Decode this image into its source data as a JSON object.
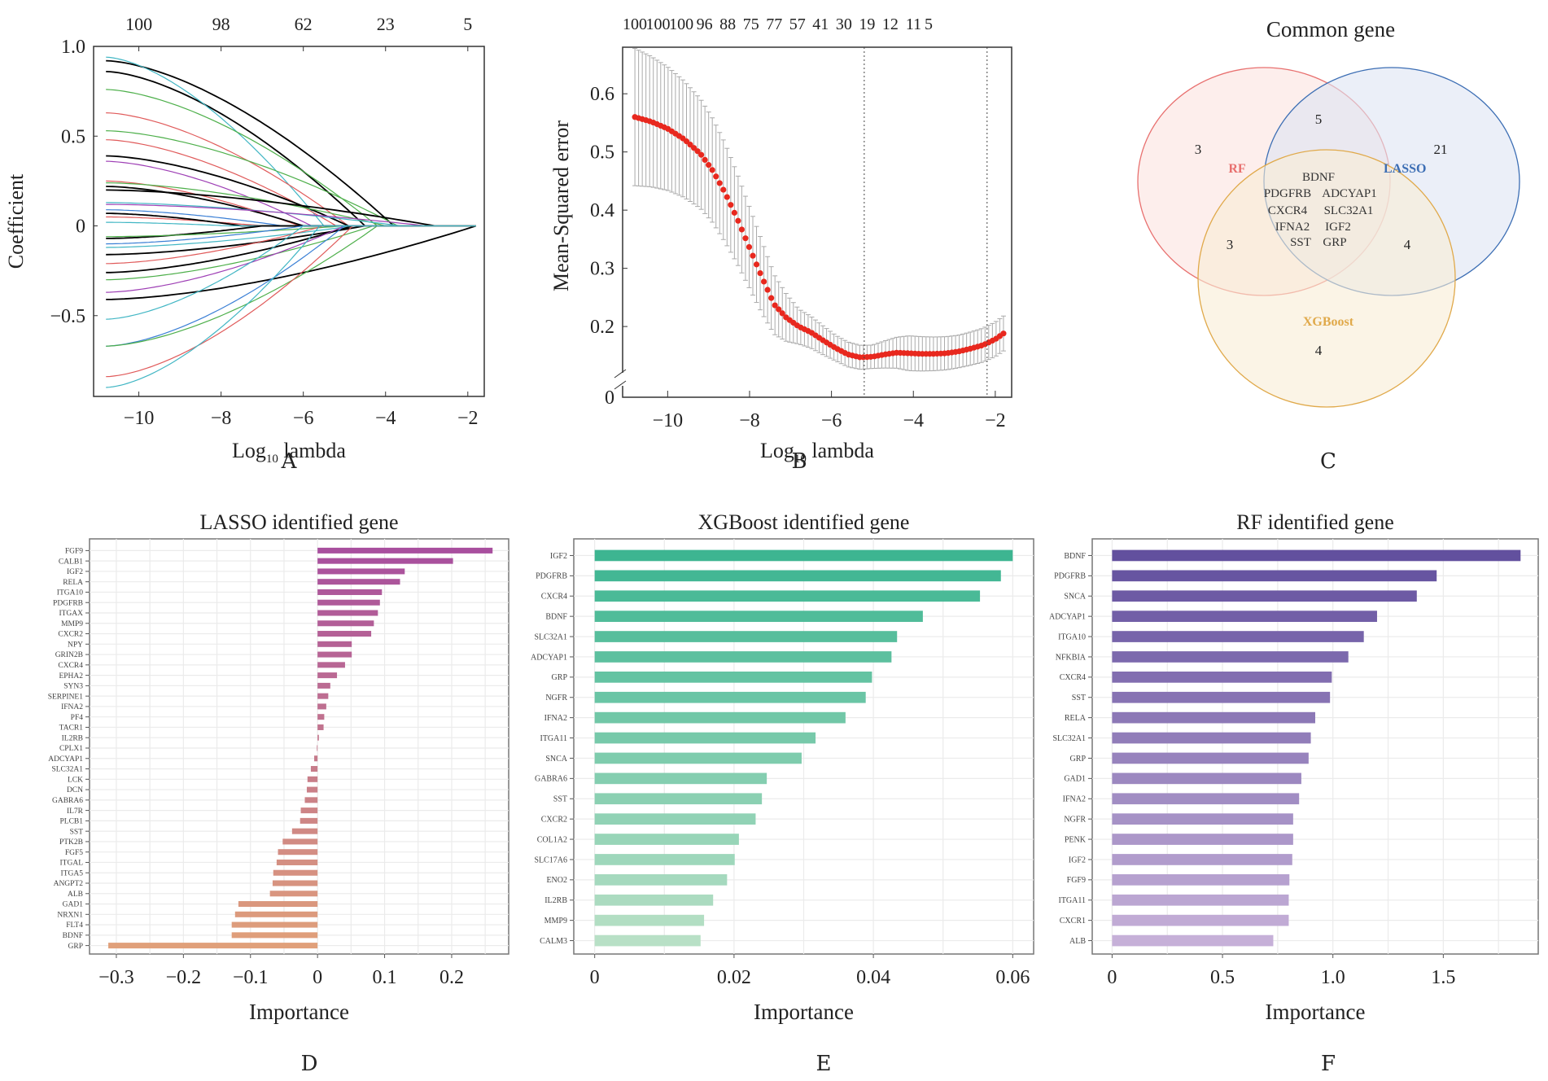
{
  "panels": {
    "A": "A",
    "B": "B",
    "C": "C",
    "D": "D",
    "E": "E",
    "F": "F"
  },
  "chart_data": [
    {
      "id": "A",
      "type": "line",
      "title": "",
      "xlabel": "Log10 lambda",
      "ylabel": "Coefficient",
      "xlim": [
        -11.1,
        -1.6
      ],
      "ylim": [
        -0.95,
        1.0
      ],
      "xticks": [
        -10,
        -8,
        -6,
        -4,
        -2
      ],
      "xtick_labels": [
        "−10",
        "−8",
        "−6",
        "−4",
        "−2"
      ],
      "yticks": [
        1.0,
        0.5,
        0,
        -0.5
      ],
      "ytick_labels": [
        "1.0",
        "0.5",
        "0",
        "−0.5"
      ],
      "top_ticks": [
        -10,
        -8,
        -6,
        -4,
        -2
      ],
      "top_tick_labels": [
        "100",
        "98",
        "62",
        "23",
        "5"
      ],
      "series_note": "LASSO coefficient paths (~100 genes), all converging to 0 near log10 lambda = -1.8",
      "series": [
        {
          "color": "#000000",
          "start": 0.92,
          "zero_at": -3.8
        },
        {
          "color": "#000000",
          "start": 0.86,
          "zero_at": -4.5
        },
        {
          "color": "#41b6c4",
          "start": 0.94,
          "zero_at": -5.5
        },
        {
          "color": "#4daf4a",
          "start": 0.76,
          "zero_at": -4.2
        },
        {
          "color": "#e05a5a",
          "start": 0.63,
          "zero_at": -4.9
        },
        {
          "color": "#4daf4a",
          "start": 0.53,
          "zero_at": -3.7
        },
        {
          "color": "#e05a5a",
          "start": 0.48,
          "zero_at": -5.2
        },
        {
          "color": "#000000",
          "start": 0.39,
          "zero_at": -4.9
        },
        {
          "color": "#9e3fb5",
          "start": 0.36,
          "zero_at": -5.8
        },
        {
          "color": "#e05a5a",
          "start": 0.25,
          "zero_at": -6.1
        },
        {
          "color": "#000000",
          "start": 0.22,
          "zero_at": -6.0
        },
        {
          "color": "#4daf4a",
          "start": 0.24,
          "zero_at": -4.0
        },
        {
          "color": "#000000",
          "start": 0.2,
          "zero_at": -2.8
        },
        {
          "color": "#41b6c4",
          "start": 0.13,
          "zero_at": -3.6
        },
        {
          "color": "#9e3fb5",
          "start": 0.12,
          "zero_at": -3.0
        },
        {
          "color": "#3a7fd5",
          "start": 0.09,
          "zero_at": -6.5
        },
        {
          "color": "#e05a5a",
          "start": 0.05,
          "zero_at": -7.0
        },
        {
          "color": "#000000",
          "start": 0.07,
          "zero_at": -7.5
        },
        {
          "color": "#41b6c4",
          "start": 0.02,
          "zero_at": -7.8
        },
        {
          "color": "#000000",
          "start": -0.07,
          "zero_at": -7.0
        },
        {
          "color": "#4daf4a",
          "start": -0.06,
          "zero_at": -5.0
        },
        {
          "color": "#3a7fd5",
          "start": -0.1,
          "zero_at": -6.0
        },
        {
          "color": "#41b6c4",
          "start": -0.12,
          "zero_at": -4.8
        },
        {
          "color": "#000000",
          "start": -0.16,
          "zero_at": -4.5
        },
        {
          "color": "#e05a5a",
          "start": -0.21,
          "zero_at": -5.5
        },
        {
          "color": "#000000",
          "start": -0.26,
          "zero_at": -4.8
        },
        {
          "color": "#4daf4a",
          "start": -0.3,
          "zero_at": -4.3
        },
        {
          "color": "#9e3fb5",
          "start": -0.37,
          "zero_at": -5.0
        },
        {
          "color": "#000000",
          "start": -0.41,
          "zero_at": -1.8
        },
        {
          "color": "#41b6c4",
          "start": -0.52,
          "zero_at": -6.0
        },
        {
          "color": "#3a7fd5",
          "start": -0.67,
          "zero_at": -5.0
        },
        {
          "color": "#4daf4a",
          "start": -0.67,
          "zero_at": -4.2
        },
        {
          "color": "#e05a5a",
          "start": -0.84,
          "zero_at": -4.8
        },
        {
          "color": "#41b6c4",
          "start": -0.9,
          "zero_at": -5.6
        }
      ]
    },
    {
      "id": "B",
      "type": "scatter",
      "title": "",
      "xlabel": "Log10 lambda",
      "ylabel": "Mean-Squared error",
      "xlim": [
        -11.1,
        -1.6
      ],
      "ylim_display": [
        0.14,
        0.68
      ],
      "axis_break": true,
      "yticks": [
        0.6,
        0.5,
        0.4,
        0.3,
        0.2
      ],
      "ytick_labels": [
        "0.6",
        "0.5",
        "0.4",
        "0.3",
        "0.2"
      ],
      "ybreak_label": "0",
      "xticks": [
        -10,
        -8,
        -6,
        -4,
        -2
      ],
      "xtick_labels": [
        "−10",
        "−8",
        "−6",
        "−4",
        "−2"
      ],
      "top_tick_labels": [
        "100",
        "100",
        "100",
        "96",
        "88",
        "75",
        "77",
        "57",
        "41",
        "30",
        "19",
        "12",
        "11",
        "5"
      ],
      "vlines": [
        -5.2,
        -2.2
      ],
      "curve_points": [
        [
          -10.8,
          0.56
        ],
        [
          -10.4,
          0.552
        ],
        [
          -10.0,
          0.54
        ],
        [
          -9.6,
          0.522
        ],
        [
          -9.2,
          0.497
        ],
        [
          -8.9,
          0.468
        ],
        [
          -8.6,
          0.43
        ],
        [
          -8.3,
          0.385
        ],
        [
          -8.0,
          0.335
        ],
        [
          -7.7,
          0.285
        ],
        [
          -7.4,
          0.238
        ],
        [
          -7.1,
          0.215
        ],
        [
          -6.8,
          0.2
        ],
        [
          -6.5,
          0.19
        ],
        [
          -6.2,
          0.176
        ],
        [
          -5.9,
          0.163
        ],
        [
          -5.6,
          0.152
        ],
        [
          -5.3,
          0.147
        ],
        [
          -5.0,
          0.148
        ],
        [
          -4.7,
          0.152
        ],
        [
          -4.4,
          0.155
        ],
        [
          -4.1,
          0.154
        ],
        [
          -3.8,
          0.153
        ],
        [
          -3.5,
          0.153
        ],
        [
          -3.2,
          0.154
        ],
        [
          -2.9,
          0.157
        ],
        [
          -2.6,
          0.162
        ],
        [
          -2.3,
          0.168
        ],
        [
          -2.0,
          0.178
        ],
        [
          -1.8,
          0.188
        ]
      ],
      "error_halfwidth": [
        [
          -10.8,
          0.118
        ],
        [
          -9.6,
          0.1
        ],
        [
          -8.6,
          0.085
        ],
        [
          -7.7,
          0.062
        ],
        [
          -6.8,
          0.03
        ],
        [
          -5.9,
          0.022
        ],
        [
          -5.0,
          0.02
        ],
        [
          -4.1,
          0.03
        ],
        [
          -2.9,
          0.028
        ],
        [
          -1.8,
          0.03
        ]
      ]
    },
    {
      "id": "C",
      "type": "venn",
      "title": "Common gene",
      "sets": [
        {
          "name": "RF",
          "color": "#e8706f",
          "fill": "#fbe3e0"
        },
        {
          "name": "LASSO",
          "color": "#3c6eb4",
          "fill": "#dde4f4"
        },
        {
          "name": "XGBoost",
          "color": "#e0a94a",
          "fill": "#f8edd6"
        }
      ],
      "regions": {
        "RF_only": "3",
        "LASSO_only": "21",
        "XGBoost_only": "4",
        "RF_LASSO": "5",
        "RF_XGBoost": "3",
        "LASSO_XGBoost": "4",
        "all_three": [
          "BDNF",
          "PDGFRB",
          "ADCYAP1",
          "CXCR4",
          "SLC32A1",
          "IFNA2",
          "IGF2",
          "SST",
          "GRP"
        ]
      }
    },
    {
      "id": "D",
      "type": "bar",
      "orientation": "horizontal",
      "title": "LASSO identified gene",
      "xlabel": "Importance",
      "xlim": [
        -0.34,
        0.285
      ],
      "xticks": [
        -0.3,
        -0.2,
        -0.1,
        0,
        0.1,
        0.2
      ],
      "xtick_labels": [
        "−0.3",
        "−0.2",
        "−0.1",
        "0",
        "0.1",
        "0.2"
      ],
      "categories": [
        "FGF9",
        "CALB1",
        "IGF2",
        "RELA",
        "ITGA10",
        "PDGFRB",
        "ITGAX",
        "MMP9",
        "CXCR2",
        "NPY",
        "GRIN2B",
        "CXCR4",
        "EPHA2",
        "SYN3",
        "SERPINE1",
        "IFNA2",
        "PF4",
        "TACR1",
        "IL2RB",
        "CPLX1",
        "ADCYAP1",
        "SLC32A1",
        "LCK",
        "DCN",
        "GABRA6",
        "IL7R",
        "PLCB1",
        "SST",
        "PTK2B",
        "FGF5",
        "ITGAL",
        "ITGA5",
        "ANGPT2",
        "ALB",
        "GAD1",
        "NRXN1",
        "FLT4",
        "BDNF",
        "GRP"
      ],
      "values": [
        0.261,
        0.202,
        0.13,
        0.123,
        0.096,
        0.093,
        0.09,
        0.084,
        0.08,
        0.051,
        0.051,
        0.041,
        0.029,
        0.019,
        0.016,
        0.013,
        0.01,
        0.009,
        0.002,
        -0.001,
        -0.005,
        -0.01,
        -0.015,
        -0.016,
        -0.019,
        -0.025,
        -0.026,
        -0.038,
        -0.052,
        -0.059,
        -0.061,
        -0.066,
        -0.067,
        -0.071,
        -0.118,
        -0.123,
        -0.128,
        -0.128,
        -0.312
      ],
      "color_range": [
        "#a84f9e",
        "#e0a07a"
      ]
    },
    {
      "id": "E",
      "type": "bar",
      "orientation": "horizontal",
      "title": "XGBoost identified gene",
      "xlabel": "Importance",
      "xlim": [
        -0.003,
        0.063
      ],
      "xticks": [
        0,
        0.02,
        0.04,
        0.06
      ],
      "xtick_labels": [
        "0",
        "0.02",
        "0.04",
        "0.06"
      ],
      "categories": [
        "IGF2",
        "PDGFRB",
        "CXCR4",
        "BDNF",
        "SLC32A1",
        "ADCYAP1",
        "GRP",
        "NGFR",
        "IFNA2",
        "ITGA11",
        "SNCA",
        "GABRA6",
        "SST",
        "CXCR2",
        "COL1A2",
        "SLC17A6",
        "ENO2",
        "IL2RB",
        "MMP9",
        "CALM3"
      ],
      "values": [
        0.06,
        0.0583,
        0.0553,
        0.0471,
        0.0434,
        0.0426,
        0.0398,
        0.0389,
        0.036,
        0.0317,
        0.0297,
        0.0247,
        0.024,
        0.0231,
        0.0207,
        0.0201,
        0.019,
        0.017,
        0.0157,
        0.0152
      ],
      "color_range": [
        "#3db591",
        "#b8e0c6"
      ]
    },
    {
      "id": "F",
      "type": "bar",
      "orientation": "horizontal",
      "title": "RF identified gene",
      "xlabel": "Importance",
      "xlim": [
        -0.09,
        1.93
      ],
      "xticks": [
        0,
        0.5,
        1.0,
        1.5
      ],
      "xtick_labels": [
        "0",
        "0.5",
        "1.0",
        "1.5"
      ],
      "categories": [
        "BDNF",
        "PDGFRB",
        "SNCA",
        "ADCYAP1",
        "ITGA10",
        "NFKBIA",
        "CXCR4",
        "SST",
        "RELA",
        "SLC32A1",
        "GRP",
        "GAD1",
        "IFNA2",
        "NGFR",
        "PENK",
        "IGF2",
        "FGF9",
        "ITGA11",
        "CXCR1",
        "ALB"
      ],
      "values": [
        1.85,
        1.47,
        1.38,
        1.2,
        1.14,
        1.07,
        0.995,
        0.987,
        0.92,
        0.9,
        0.89,
        0.857,
        0.847,
        0.82,
        0.82,
        0.816,
        0.803,
        0.8,
        0.8,
        0.73
      ],
      "color_range": [
        "#62509e",
        "#c6b0d8"
      ]
    }
  ]
}
